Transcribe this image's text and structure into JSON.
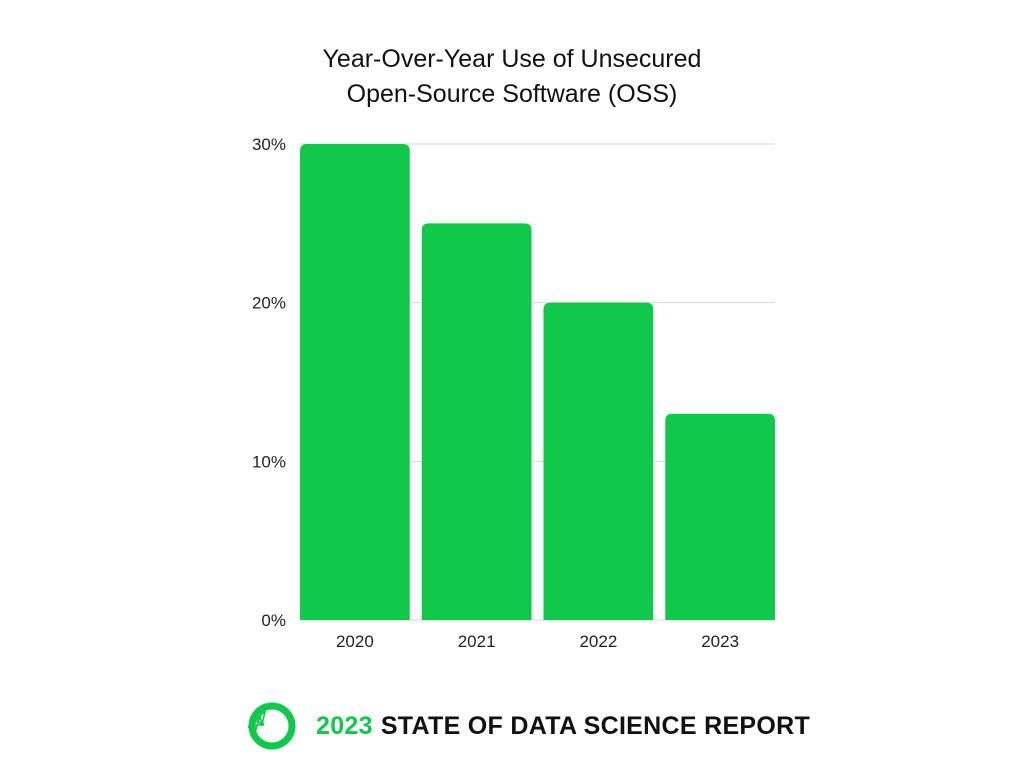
{
  "colors": {
    "bar": "#10c84a",
    "grid": "#d9d9d9",
    "accent": "#10c84a"
  },
  "chart_data": {
    "type": "bar",
    "title_lines": [
      "Year-Over-Year Use of Unsecured",
      "Open-Source Software (OSS)"
    ],
    "categories": [
      "2020",
      "2021",
      "2022",
      "2023"
    ],
    "values": [
      30,
      25,
      20,
      13
    ],
    "unit": "%",
    "ylim": [
      0,
      30
    ],
    "yticks": [
      0,
      10,
      20,
      30
    ],
    "ytick_labels": [
      "0%",
      "10%",
      "20%",
      "30%"
    ],
    "xlabel": "",
    "ylabel": "",
    "grid": true,
    "legend": false
  },
  "footer": {
    "year": "2023",
    "report_name": "STATE OF DATA SCIENCE REPORT",
    "logo_icon": "circular-network-logo-icon"
  }
}
